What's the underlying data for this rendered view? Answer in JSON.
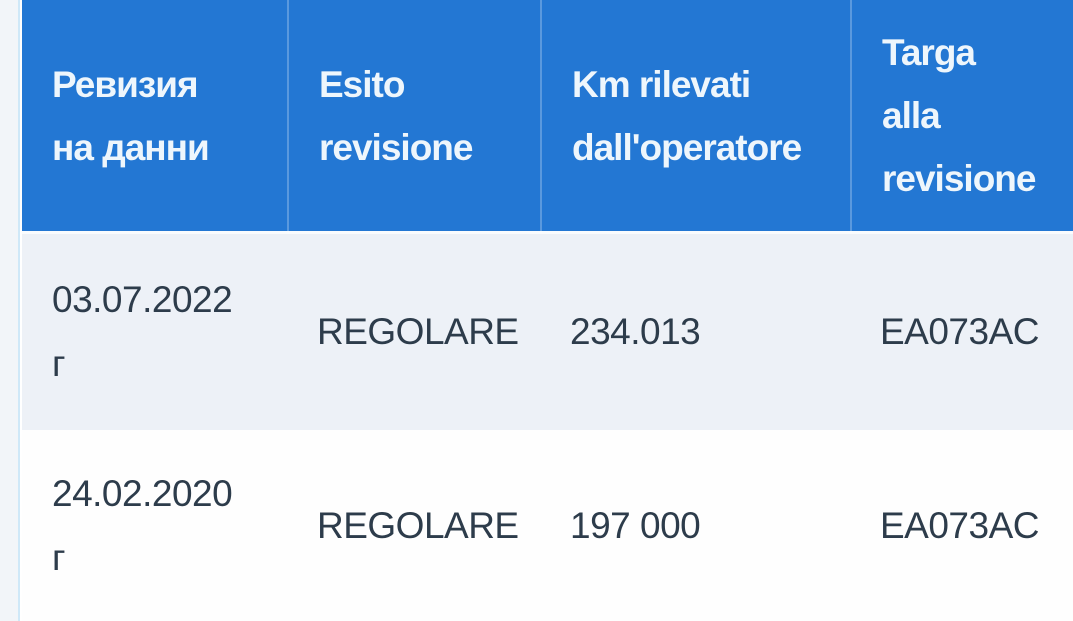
{
  "colors": {
    "header_background": "#2377d3",
    "header_text": "#eef6fc",
    "row_odd_background": "#edf1f7",
    "row_even_background": "#fefefe",
    "body_text": "#2d3c4b",
    "left_gutter": "#f2f5f9"
  },
  "table": {
    "header": {
      "columns": [
        {
          "label": "Ревизия на данни",
          "lines": [
            "Ревизия",
            "на данни"
          ]
        },
        {
          "label": "Esito revisione",
          "lines": [
            "Esito",
            "revisione"
          ]
        },
        {
          "label": "Km rilevati dall'operatore",
          "lines": [
            "Km rilevati",
            "dall'operatore"
          ]
        },
        {
          "label": "Targa alla revisione",
          "lines": [
            "Targa",
            "alla",
            "revisione"
          ]
        }
      ]
    },
    "rows": [
      {
        "date": "03.07.2022 г",
        "date_lines": [
          "03.07.2022",
          "г"
        ],
        "esito": "REGOLARE",
        "km": "234.013",
        "targa": "EA073AC"
      },
      {
        "date": "24.02.2020 г",
        "date_lines": [
          "24.02.2020",
          "г"
        ],
        "esito": "REGOLARE",
        "km": "197 000",
        "targa": "EA073AC"
      }
    ]
  }
}
